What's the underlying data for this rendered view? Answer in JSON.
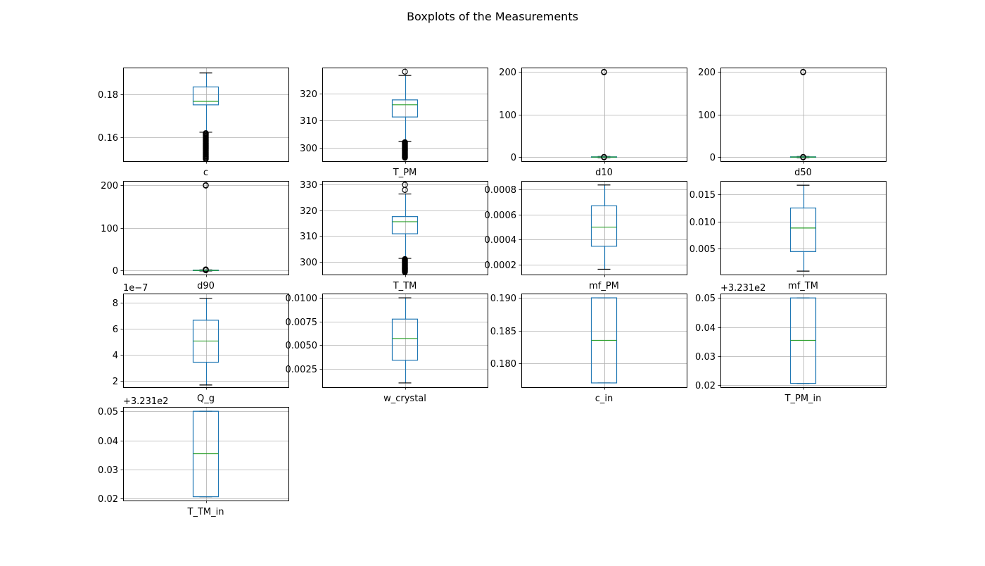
{
  "figure": {
    "title": "Boxplots of the Measurements"
  },
  "colors": {
    "box": "#1f77b4",
    "median": "#2ca02c",
    "whisker": "#1f77b4",
    "cap": "#000000",
    "flier": "#000000",
    "grid": "#b0b0b0",
    "axis": "#000000"
  },
  "chart_data": [
    {
      "type": "box",
      "xlabel": "c",
      "ylim": [
        0.149,
        0.1925
      ],
      "yticks": [
        {
          "v": 0.16,
          "label": "0.16"
        },
        {
          "v": 0.18,
          "label": "0.18"
        }
      ],
      "box": {
        "whisker_low": 0.1625,
        "q1": 0.1752,
        "median": 0.1768,
        "q3": 0.1835,
        "whisker_high": 0.19
      },
      "fliers": {
        "range": [
          0.15,
          0.162
        ],
        "count": 30
      }
    },
    {
      "type": "box",
      "xlabel": "T_PM",
      "ylim": [
        295.0,
        329.5
      ],
      "yticks": [
        {
          "v": 300,
          "label": "300"
        },
        {
          "v": 310,
          "label": "310"
        },
        {
          "v": 320,
          "label": "320"
        }
      ],
      "box": {
        "whisker_low": 302.3,
        "q1": 311.3,
        "median": 315.8,
        "q3": 317.6,
        "whisker_high": 326.6
      },
      "fliers": {
        "range": [
          296.3,
          302.0
        ],
        "count": 24,
        "points": [
          328.0
        ]
      }
    },
    {
      "type": "box",
      "xlabel": "d10",
      "ylim": [
        -10,
        210
      ],
      "yticks": [
        {
          "v": 0,
          "label": "0"
        },
        {
          "v": 100,
          "label": "100"
        },
        {
          "v": 200,
          "label": "200"
        }
      ],
      "box": {
        "whisker_low": -1.5,
        "q1": -0.8,
        "median": -0.3,
        "q3": 0.4,
        "whisker_high": 1.0
      },
      "fliers": {
        "points": [
          200,
          199,
          0,
          -1
        ]
      }
    },
    {
      "type": "box",
      "xlabel": "d50",
      "ylim": [
        -10,
        210
      ],
      "yticks": [
        {
          "v": 0,
          "label": "0"
        },
        {
          "v": 100,
          "label": "100"
        },
        {
          "v": 200,
          "label": "200"
        }
      ],
      "box": {
        "whisker_low": -1.5,
        "q1": -0.8,
        "median": -0.3,
        "q3": 0.4,
        "whisker_high": 1.0
      },
      "fliers": {
        "points": [
          200,
          199,
          0,
          -1
        ]
      }
    },
    {
      "type": "box",
      "xlabel": "d90",
      "ylim": [
        -10,
        210
      ],
      "yticks": [
        {
          "v": 0,
          "label": "0"
        },
        {
          "v": 100,
          "label": "100"
        },
        {
          "v": 200,
          "label": "200"
        }
      ],
      "box": {
        "whisker_low": -1.5,
        "q1": -0.8,
        "median": -0.3,
        "q3": 0.4,
        "whisker_high": 1.0
      },
      "fliers": {
        "points": [
          200,
          199,
          2,
          1,
          0
        ]
      }
    },
    {
      "type": "box",
      "xlabel": "T_TM",
      "ylim": [
        295.0,
        331.5
      ],
      "yticks": [
        {
          "v": 300,
          "label": "300"
        },
        {
          "v": 310,
          "label": "310"
        },
        {
          "v": 320,
          "label": "320"
        },
        {
          "v": 330,
          "label": "330"
        }
      ],
      "box": {
        "whisker_low": 301.3,
        "q1": 310.9,
        "median": 315.6,
        "q3": 317.6,
        "whisker_high": 326.4
      },
      "fliers": {
        "range": [
          296.0,
          301.0
        ],
        "count": 24,
        "points": [
          328.0,
          330.0
        ]
      }
    },
    {
      "type": "box",
      "xlabel": "mf_PM",
      "ylim": [
        0.000124,
        0.000865
      ],
      "yticks": [
        {
          "v": 0.0002,
          "label": "0.0002"
        },
        {
          "v": 0.0004,
          "label": "0.0004"
        },
        {
          "v": 0.0006,
          "label": "0.0006"
        },
        {
          "v": 0.0008,
          "label": "0.0008"
        }
      ],
      "box": {
        "whisker_low": 0.000166,
        "q1": 0.000348,
        "median": 0.000499,
        "q3": 0.000668,
        "whisker_high": 0.000833
      }
    },
    {
      "type": "box",
      "xlabel": "mf_TM",
      "ylim": [
        0.0002,
        0.0175
      ],
      "yticks": [
        {
          "v": 0.005,
          "label": "0.005"
        },
        {
          "v": 0.01,
          "label": "0.010"
        },
        {
          "v": 0.015,
          "label": "0.015"
        }
      ],
      "box": {
        "whisker_low": 0.00083,
        "q1": 0.00445,
        "median": 0.0088,
        "q3": 0.0125,
        "whisker_high": 0.0167
      }
    },
    {
      "type": "box",
      "xlabel": "Q_g",
      "offset_label": "1e−7",
      "ylim": [
        1.5,
        8.7
      ],
      "yticks": [
        {
          "v": 2,
          "label": "2"
        },
        {
          "v": 4,
          "label": "4"
        },
        {
          "v": 6,
          "label": "6"
        },
        {
          "v": 8,
          "label": "8"
        }
      ],
      "box": {
        "whisker_low": 1.67,
        "q1": 3.42,
        "median": 5.05,
        "q3": 6.65,
        "whisker_high": 8.33
      }
    },
    {
      "type": "box",
      "xlabel": "w_crystal",
      "ylim": [
        0.00055,
        0.01045
      ],
      "yticks": [
        {
          "v": 0.0025,
          "label": "0.0025"
        },
        {
          "v": 0.005,
          "label": "0.0050"
        },
        {
          "v": 0.0075,
          "label": "0.0075"
        },
        {
          "v": 0.01,
          "label": "0.0100"
        }
      ],
      "box": {
        "whisker_low": 0.001,
        "q1": 0.0034,
        "median": 0.0057,
        "q3": 0.00775,
        "whisker_high": 0.01
      }
    },
    {
      "type": "box",
      "xlabel": "c_in",
      "ylim": [
        0.17635,
        0.19065
      ],
      "yticks": [
        {
          "v": 0.18,
          "label": "0.180"
        },
        {
          "v": 0.185,
          "label": "0.185"
        },
        {
          "v": 0.19,
          "label": "0.190"
        }
      ],
      "box": {
        "whisker_low": 0.177,
        "q1": 0.177,
        "median": 0.1835,
        "q3": 0.19,
        "whisker_high": 0.19
      }
    },
    {
      "type": "box",
      "xlabel": "T_PM_in",
      "offset_label": "+3.231e2",
      "ylim": [
        0.0193,
        0.0515
      ],
      "yticks": [
        {
          "v": 0.02,
          "label": "0.02"
        },
        {
          "v": 0.03,
          "label": "0.03"
        },
        {
          "v": 0.04,
          "label": "0.04"
        },
        {
          "v": 0.05,
          "label": "0.05"
        }
      ],
      "box": {
        "whisker_low": 0.0206,
        "q1": 0.0206,
        "median": 0.0354,
        "q3": 0.05,
        "whisker_high": 0.05
      }
    },
    {
      "type": "box",
      "xlabel": "T_TM_in",
      "offset_label": "+3.231e2",
      "ylim": [
        0.0193,
        0.0515
      ],
      "yticks": [
        {
          "v": 0.02,
          "label": "0.02"
        },
        {
          "v": 0.03,
          "label": "0.03"
        },
        {
          "v": 0.04,
          "label": "0.04"
        },
        {
          "v": 0.05,
          "label": "0.05"
        }
      ],
      "box": {
        "whisker_low": 0.0206,
        "q1": 0.0206,
        "median": 0.0354,
        "q3": 0.05,
        "whisker_high": 0.05
      }
    }
  ]
}
